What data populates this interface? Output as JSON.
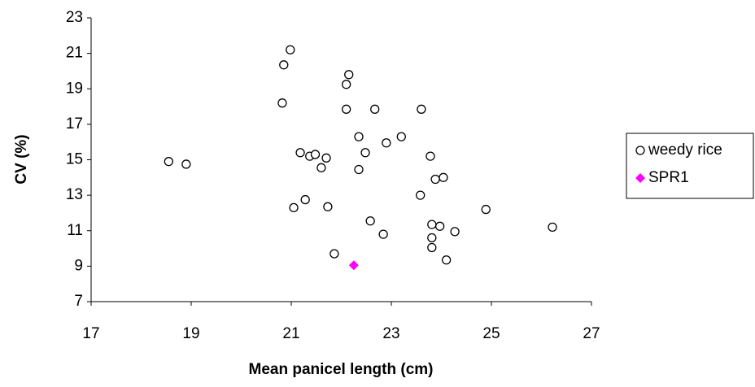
{
  "chart_data": {
    "type": "scatter",
    "x_label": "Mean panicel length (cm)",
    "y_label": "CV (%)",
    "xlim": [
      17,
      27
    ],
    "xticks": [
      17,
      19,
      21,
      23,
      25,
      27
    ],
    "ylim": [
      7,
      23
    ],
    "yticks": [
      7,
      9,
      11,
      13,
      15,
      17,
      19,
      21,
      23
    ],
    "grid": false,
    "legend": "right",
    "series": [
      {
        "name": "weedy rice",
        "color": "#000000",
        "marker": "open-circle",
        "x": [
          20.98,
          20.85,
          22.15,
          22.1,
          20.82,
          22.1,
          22.67,
          23.6,
          22.35,
          23.2,
          22.9,
          21.18,
          22.48,
          21.37,
          21.48,
          21.7,
          21.6,
          22.35,
          18.55,
          18.9,
          23.78,
          23.88,
          24.04,
          23.58,
          21.28,
          21.05,
          21.73,
          24.89,
          22.58,
          23.81,
          23.97,
          23.81,
          23.81,
          24.27,
          26.22,
          22.84,
          21.86,
          24.1
        ],
        "y": [
          21.2,
          20.35,
          19.8,
          19.25,
          18.2,
          17.85,
          17.85,
          17.85,
          16.3,
          16.3,
          15.95,
          15.4,
          15.4,
          15.2,
          15.3,
          15.1,
          14.55,
          14.45,
          14.9,
          14.75,
          15.2,
          13.9,
          14.0,
          13.0,
          12.75,
          12.3,
          12.35,
          12.2,
          11.55,
          11.35,
          11.25,
          10.6,
          10.05,
          10.95,
          11.2,
          10.8,
          9.7,
          9.35
        ]
      },
      {
        "name": "SPR1",
        "color": "#ff00ff",
        "marker": "diamond",
        "x": [
          22.25
        ],
        "y": [
          9.05
        ]
      }
    ]
  }
}
